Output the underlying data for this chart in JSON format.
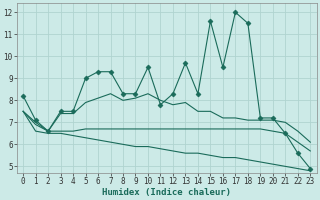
{
  "xlabel": "Humidex (Indice chaleur)",
  "bg_color": "#cceae7",
  "grid_color": "#b0d4d0",
  "line_color": "#1a6b5a",
  "x_values": [
    0,
    1,
    2,
    3,
    4,
    5,
    6,
    7,
    8,
    9,
    10,
    11,
    12,
    13,
    14,
    15,
    16,
    17,
    18,
    19,
    20,
    21,
    22,
    23
  ],
  "line1": [
    8.2,
    7.1,
    6.6,
    7.5,
    7.5,
    9.0,
    9.3,
    9.3,
    8.3,
    8.3,
    9.5,
    7.8,
    8.3,
    9.7,
    8.3,
    11.6,
    9.5,
    12.0,
    11.5,
    7.2,
    7.2,
    6.5,
    5.6,
    4.9
  ],
  "line2": [
    7.5,
    7.0,
    6.6,
    7.4,
    7.4,
    7.9,
    8.1,
    8.3,
    8.0,
    8.1,
    8.3,
    8.0,
    7.8,
    7.9,
    7.5,
    7.5,
    7.2,
    7.2,
    7.1,
    7.1,
    7.1,
    7.0,
    6.6,
    6.1
  ],
  "line3": [
    7.5,
    6.9,
    6.6,
    6.6,
    6.6,
    6.7,
    6.7,
    6.7,
    6.7,
    6.7,
    6.7,
    6.7,
    6.7,
    6.7,
    6.7,
    6.7,
    6.7,
    6.7,
    6.7,
    6.7,
    6.6,
    6.5,
    6.1,
    5.7
  ],
  "line4": [
    7.5,
    6.6,
    6.5,
    6.5,
    6.4,
    6.3,
    6.2,
    6.1,
    6.0,
    5.9,
    5.9,
    5.8,
    5.7,
    5.6,
    5.6,
    5.5,
    5.4,
    5.4,
    5.3,
    5.2,
    5.1,
    5.0,
    4.9,
    4.8
  ],
  "xlim": [
    -0.5,
    23.5
  ],
  "ylim": [
    4.7,
    12.4
  ],
  "yticks": [
    5,
    6,
    7,
    8,
    9,
    10,
    11,
    12
  ],
  "xticks": [
    0,
    1,
    2,
    3,
    4,
    5,
    6,
    7,
    8,
    9,
    10,
    11,
    12,
    13,
    14,
    15,
    16,
    17,
    18,
    19,
    20,
    21,
    22,
    23
  ],
  "tick_fontsize": 5.5,
  "xlabel_fontsize": 6.5,
  "marker_size": 2.5
}
